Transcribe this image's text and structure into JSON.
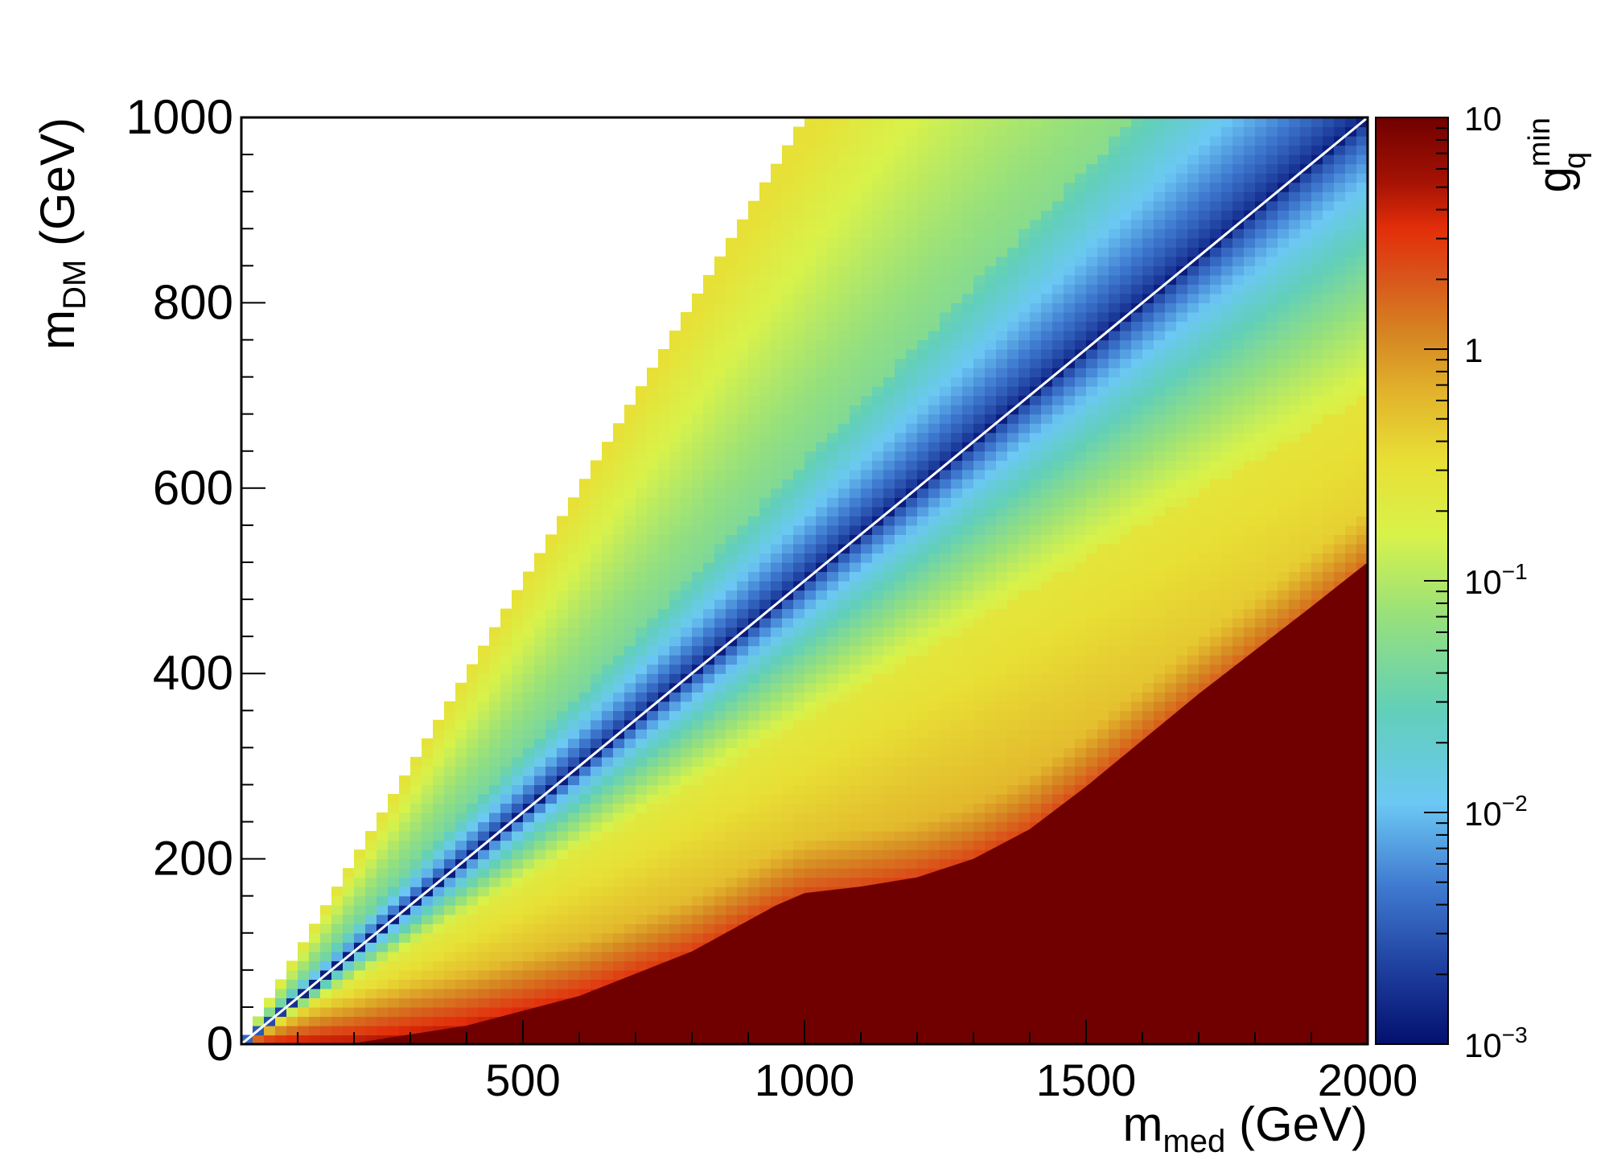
{
  "chart_data": {
    "type": "heatmap",
    "title": "",
    "xlabel": {
      "main": "m",
      "sub": "med",
      "unit": "(GeV)"
    },
    "ylabel": {
      "main": "m",
      "sub": "DM",
      "unit": "(GeV)"
    },
    "zlabel": {
      "main": "g",
      "sup": "min",
      "sub": "q"
    },
    "xlim": [
      0,
      2000
    ],
    "ylim": [
      0,
      1000
    ],
    "zlim": [
      0.001,
      10
    ],
    "zscale": "log",
    "grid": false,
    "x_ticks": [
      {
        "value": 500,
        "label": "500"
      },
      {
        "value": 1000,
        "label": "1000"
      },
      {
        "value": 1500,
        "label": "1500"
      },
      {
        "value": 2000,
        "label": "2000"
      }
    ],
    "y_ticks": [
      {
        "value": 0,
        "label": "0"
      },
      {
        "value": 200,
        "label": "200"
      },
      {
        "value": 400,
        "label": "400"
      },
      {
        "value": 600,
        "label": "600"
      },
      {
        "value": 800,
        "label": "800"
      },
      {
        "value": 1000,
        "label": "1000"
      }
    ],
    "z_ticks": [
      {
        "value": 10,
        "base": "10",
        "exp": ""
      },
      {
        "value": 1,
        "base": "1",
        "exp": ""
      },
      {
        "value": 0.1,
        "base": "10",
        "exp": "−1"
      },
      {
        "value": 0.01,
        "base": "10",
        "exp": "−2"
      },
      {
        "value": 0.001,
        "base": "10",
        "exp": "−3"
      }
    ],
    "regions": {
      "empty_upper_left_boundary": {
        "x": [
          0,
          1000
        ],
        "y": [
          0,
          1000
        ]
      },
      "resonance_diagonal": {
        "x": [
          0,
          2000
        ],
        "y": [
          0,
          1000
        ]
      },
      "saturated_lower_boundary": {
        "x": [
          0,
          200,
          400,
          600,
          800,
          950,
          1000,
          1100,
          1200,
          1300,
          1400,
          1500,
          1600,
          1700,
          1800,
          1900,
          2000
        ],
        "y": [
          0,
          1,
          20,
          52,
          100,
          150,
          163,
          170,
          180,
          200,
          232,
          278,
          328,
          378,
          425,
          472,
          520
        ]
      }
    },
    "colors": {
      "saturated": "#700000",
      "palette": [
        "#03106e",
        "#1e3e9e",
        "#3f7ad0",
        "#6cc8f4",
        "#61cfb9",
        "#96e07d",
        "#d8f24a",
        "#e8df35",
        "#e2b52c",
        "#d68a23",
        "#d9531a",
        "#e32e0a",
        "#a51204",
        "#700000"
      ]
    }
  }
}
